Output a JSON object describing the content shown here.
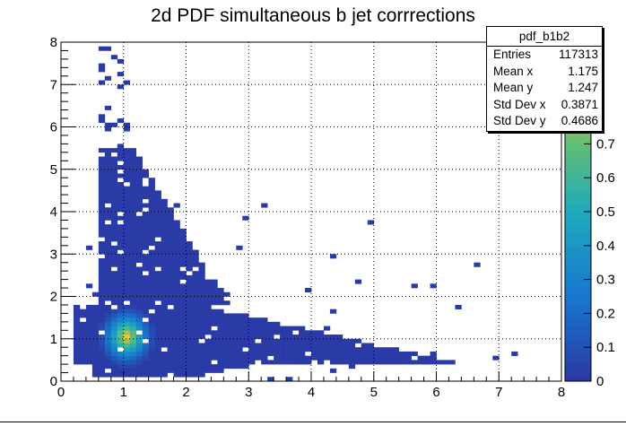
{
  "colors": {
    "low": "#2a3aa6",
    "mid": "#1ea8c8",
    "peak": "#e6c232"
  },
  "chart_data": {
    "type": "heatmap",
    "title": "2d PDF simultaneous b jet corrrections",
    "xlim": [
      0,
      8
    ],
    "ylim": [
      0,
      8
    ],
    "x_ticks": [
      "0",
      "1",
      "2",
      "3",
      "4",
      "5",
      "6",
      "7",
      "8"
    ],
    "y_ticks": [
      "0",
      "1",
      "2",
      "3",
      "4",
      "5",
      "6",
      "7",
      "8"
    ],
    "grid": true,
    "z_range": [
      0,
      1.0
    ],
    "z_ticks": [
      "0",
      "0.1",
      "0.2",
      "0.3",
      "0.4",
      "0.5",
      "0.6",
      "0.7"
    ],
    "peak": {
      "x": 1.05,
      "y": 1.05
    },
    "stats": {
      "name": "pdf_b1b2",
      "rows": [
        {
          "label": "Entries",
          "value": "117313"
        },
        {
          "label": "Mean x",
          "value": "1.175"
        },
        {
          "label": "Mean y",
          "value": "1.247"
        },
        {
          "label": "Std Dev x",
          "value": "0.3871"
        },
        {
          "label": "Std Dev y",
          "value": "0.4686"
        }
      ]
    }
  }
}
